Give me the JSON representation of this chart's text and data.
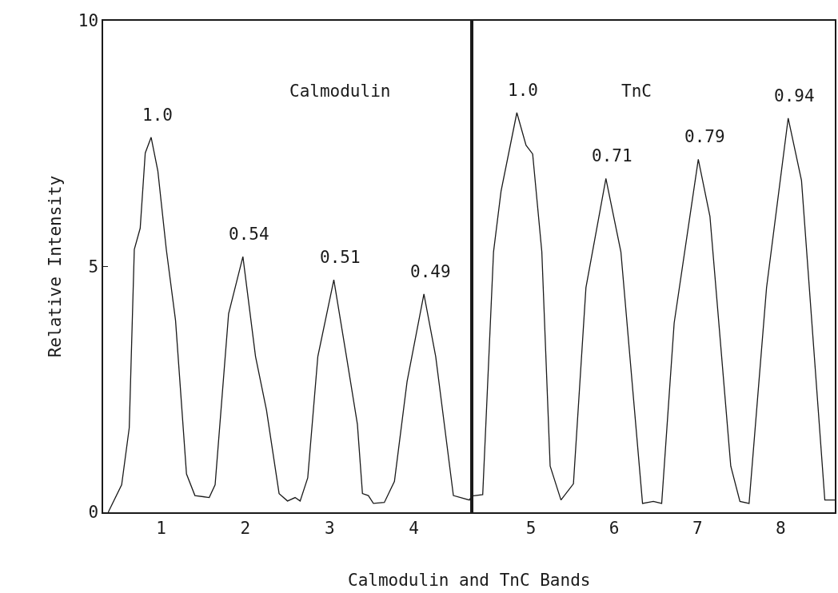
{
  "chart_data": [
    {
      "type": "line",
      "xlabel": "Calmodulin and TnC Bands",
      "ylabel": "Relative Intensity",
      "xlim": [
        0.31,
        4.69
      ],
      "xticks": [
        1,
        2,
        3,
        4
      ],
      "ylim": [
        0,
        10
      ],
      "yticks": [
        0,
        5,
        10
      ],
      "series": [
        {
          "color": "#1a1a1a",
          "x": [
            0.37,
            0.53,
            0.62,
            0.68,
            0.75,
            0.81,
            0.88,
            0.96,
            1.06,
            1.17,
            1.3,
            1.4,
            1.57,
            1.64,
            1.8,
            1.97,
            2.12,
            2.25,
            2.4,
            2.5,
            2.59,
            2.65,
            2.74,
            2.86,
            3.05,
            3.2,
            3.33,
            3.39,
            3.46,
            3.52,
            3.65,
            3.77,
            3.92,
            4.12,
            4.26,
            4.47,
            4.66,
            4.69
          ],
          "values": [
            0,
            0.56,
            1.72,
            5.35,
            5.78,
            7.31,
            7.63,
            6.94,
            5.35,
            3.9,
            0.78,
            0.34,
            0.3,
            0.56,
            4.04,
            5.2,
            3.17,
            2.08,
            0.38,
            0.23,
            0.3,
            0.23,
            0.7,
            3.17,
            4.73,
            3.17,
            1.79,
            0.38,
            0.34,
            0.18,
            0.2,
            0.63,
            2.66,
            4.44,
            3.17,
            0.34,
            0.25,
            0.33
          ]
        }
      ],
      "annotations": [
        "Calmodulin",
        {
          "text": "1.0",
          "x": 0.88,
          "y": 7.63
        },
        {
          "text": "0.54",
          "x": 1.97,
          "y": 5.2
        },
        {
          "text": "0.51",
          "x": 3.05,
          "y": 4.73
        },
        {
          "text": "0.49",
          "x": 4.12,
          "y": 4.44
        }
      ]
    },
    {
      "type": "line",
      "xlim": [
        4.29,
        8.65
      ],
      "xticks": [
        5,
        6,
        7,
        8
      ],
      "ylim": [
        0,
        10
      ],
      "tick_labels": "x",
      "series": [
        {
          "color": "#1a1a1a",
          "x": [
            4.29,
            4.42,
            4.55,
            4.64,
            4.83,
            4.94,
            5.02,
            5.13,
            5.23,
            5.36,
            5.51,
            5.66,
            5.9,
            6.08,
            6.34,
            6.47,
            6.57,
            6.72,
            7.01,
            7.15,
            7.4,
            7.51,
            7.62,
            7.83,
            8.09,
            8.25,
            8.53,
            8.65
          ],
          "values": [
            0.33,
            0.36,
            5.3,
            6.53,
            8.13,
            7.47,
            7.29,
            5.3,
            0.94,
            0.25,
            0.58,
            4.57,
            6.79,
            5.3,
            0.18,
            0.22,
            0.18,
            3.85,
            7.18,
            6.02,
            0.94,
            0.22,
            0.18,
            4.57,
            8.02,
            6.75,
            0.25,
            0.25
          ]
        }
      ],
      "annotations": [
        "TnC",
        {
          "text": "1.0",
          "x": 4.83,
          "y": 8.13
        },
        {
          "text": "0.71",
          "x": 5.9,
          "y": 6.79
        },
        {
          "text": "0.79",
          "x": 7.01,
          "y": 7.18
        },
        {
          "text": "0.94",
          "x": 8.09,
          "y": 8.02
        }
      ]
    }
  ]
}
